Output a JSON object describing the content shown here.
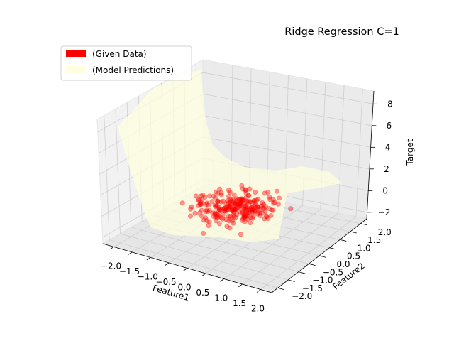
{
  "chart_data": {
    "type": "scatter3d",
    "title": "Ridge Regression C=1",
    "xlabel": "Feature1",
    "ylabel": "Feature2",
    "zlabel": "Target",
    "x_ticks": [
      "−2.0",
      "−1.5",
      "−1.0",
      "−0.5",
      "0.0",
      "0.5",
      "1.0",
      "1.5",
      "2.0"
    ],
    "y_ticks": [
      "−2.0",
      "−1.5",
      "−1.0",
      "−0.5",
      "0.0",
      "0.5",
      "1.0",
      "1.5",
      "2.0"
    ],
    "z_ticks": [
      "−2",
      "0",
      "2",
      "4",
      "6",
      "8"
    ],
    "xlim": [
      -2.3,
      2.3
    ],
    "ylim": [
      -2.3,
      2.3
    ],
    "zlim": [
      -2.6,
      9.2
    ],
    "grid": true,
    "legend_position": "top-left",
    "series": [
      {
        "name": "(Given Data)",
        "kind": "scatter",
        "color": "#ff0000",
        "alpha": 0.4,
        "n_points": 250,
        "x_range": [
          -1.0,
          1.0
        ],
        "y_range": [
          -1.0,
          1.0
        ],
        "z_range": [
          -1.5,
          1.5
        ]
      },
      {
        "name": "(Model Predictions)",
        "kind": "surface",
        "color": "#ffffe0",
        "alpha": 0.6,
        "description_values": {
          "z_at_corner_x-2_y-2": 8.5,
          "z_center": 0.0
        }
      }
    ]
  }
}
